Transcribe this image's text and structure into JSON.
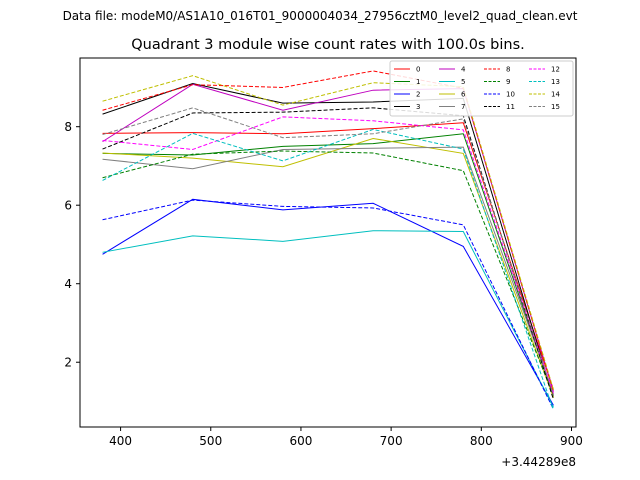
{
  "chart_data": {
    "type": "line",
    "suptitle": "Data file: modeM0/AS1A10_016T01_9000004034_27956cztM0_level2_quad_clean.evt",
    "title": "Quadrant 3 module wise count rates with 100.0s bins.",
    "xlabel": "",
    "ylabel": "",
    "x_offset_label": "+3.44289e8",
    "x": [
      380,
      480,
      580,
      680,
      780,
      880
    ],
    "xlim": [
      355,
      905
    ],
    "ylim": [
      0.35,
      9.75
    ],
    "xticks": [
      400,
      500,
      600,
      700,
      800,
      900
    ],
    "yticks": [
      2,
      4,
      6,
      8
    ],
    "grid": false,
    "legend": {
      "location": "top-right",
      "columns": 4
    },
    "series": [
      {
        "name": "0",
        "color": "#ff0000",
        "dash": "solid",
        "values": [
          7.83,
          7.85,
          7.82,
          7.95,
          8.1,
          1.3
        ]
      },
      {
        "name": "1",
        "color": "#008000",
        "dash": "solid",
        "values": [
          7.32,
          7.28,
          7.5,
          7.57,
          7.82,
          1.15
        ]
      },
      {
        "name": "2",
        "color": "#0000ff",
        "dash": "solid",
        "values": [
          4.75,
          6.15,
          5.88,
          6.05,
          4.95,
          0.9
        ]
      },
      {
        "name": "3",
        "color": "#000000",
        "dash": "solid",
        "values": [
          8.32,
          9.1,
          8.6,
          8.63,
          8.72,
          1.1
        ]
      },
      {
        "name": "4",
        "color": "#bf00bf",
        "dash": "solid",
        "values": [
          7.62,
          9.08,
          8.42,
          8.93,
          8.97,
          1.25
        ]
      },
      {
        "name": "5",
        "color": "#00bfbf",
        "dash": "solid",
        "values": [
          4.8,
          5.22,
          5.08,
          5.35,
          5.33,
          0.85
        ]
      },
      {
        "name": "6",
        "color": "#bfbf00",
        "dash": "solid",
        "values": [
          7.33,
          7.2,
          6.98,
          7.7,
          7.32,
          1.1
        ]
      },
      {
        "name": "7",
        "color": "#808080",
        "dash": "solid",
        "values": [
          7.17,
          6.93,
          7.42,
          7.45,
          7.48,
          1.2
        ]
      },
      {
        "name": "8",
        "color": "#ff0000",
        "dash": "dashed",
        "values": [
          8.42,
          9.07,
          9.0,
          9.42,
          8.98,
          1.25
        ]
      },
      {
        "name": "9",
        "color": "#008000",
        "dash": "dashed",
        "values": [
          6.7,
          7.3,
          7.38,
          7.33,
          6.88,
          1.15
        ]
      },
      {
        "name": "10",
        "color": "#0000ff",
        "dash": "dashed",
        "values": [
          5.63,
          6.13,
          5.97,
          5.93,
          5.5,
          0.8
        ]
      },
      {
        "name": "11",
        "color": "#000000",
        "dash": "dashed",
        "values": [
          7.43,
          8.35,
          8.37,
          8.48,
          8.28,
          1.05
        ]
      },
      {
        "name": "12",
        "color": "#ff00ff",
        "dash": "dashed",
        "values": [
          7.65,
          7.42,
          8.25,
          8.15,
          7.92,
          1.2
        ]
      },
      {
        "name": "13",
        "color": "#00bfbf",
        "dash": "dashed",
        "values": [
          6.63,
          7.83,
          7.13,
          7.93,
          7.43,
          0.78
        ]
      },
      {
        "name": "14",
        "color": "#bfbf00",
        "dash": "dashed",
        "values": [
          8.65,
          9.3,
          8.55,
          9.12,
          9.02,
          1.3
        ]
      },
      {
        "name": "15",
        "color": "#808080",
        "dash": "dashed",
        "values": [
          7.8,
          8.48,
          7.72,
          7.82,
          8.2,
          1.15
        ]
      }
    ]
  }
}
